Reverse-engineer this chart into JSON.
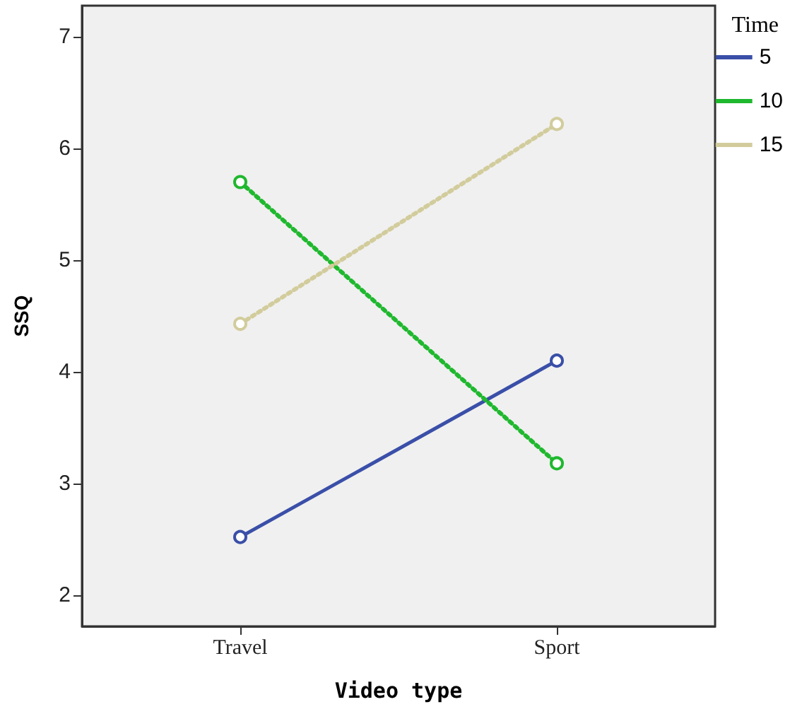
{
  "chart_data": {
    "type": "line",
    "xlabel": "Video type",
    "ylabel": "SSQ",
    "legend_title": "Time",
    "categories": [
      "Travel",
      "Sport"
    ],
    "series": [
      {
        "name": "5",
        "color": "#3a4fa8",
        "values": [
          2.52,
          4.1
        ],
        "line_style": "solid"
      },
      {
        "name": "10",
        "color": "#1fb82e",
        "values": [
          5.7,
          3.18
        ],
        "line_style": "dotted"
      },
      {
        "name": "15",
        "color": "#d2cc9c",
        "values": [
          4.43,
          6.22
        ],
        "line_style": "dotted"
      }
    ],
    "ylim": [
      1.72,
      7.28
    ],
    "yticks": [
      2,
      3,
      4,
      5,
      6,
      7
    ],
    "marker": "circle",
    "legend": "top right",
    "grid": false
  }
}
